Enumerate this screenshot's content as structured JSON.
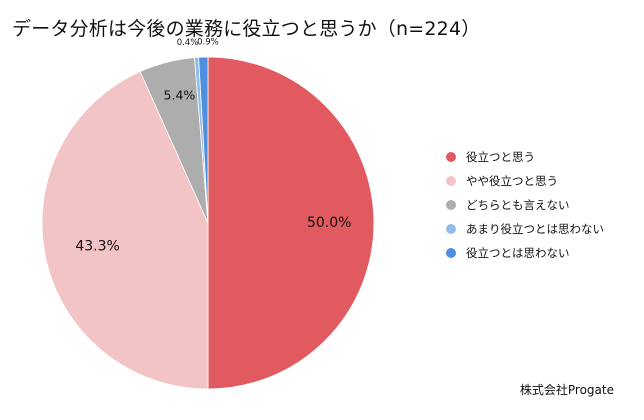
{
  "chart_data": {
    "type": "pie",
    "title": "データ分析は今後の業務に役立つと思うか（n=224）",
    "start_angle_deg": 0,
    "direction": "clockwise",
    "slices": [
      {
        "label": "役立つと思う",
        "value": 50.0,
        "value_label": "50.0%",
        "color": "#e05a60"
      },
      {
        "label": "やや役立つと思う",
        "value": 43.3,
        "value_label": "43.3%",
        "color": "#f3c4c5"
      },
      {
        "label": "どちらとも言えない",
        "value": 5.4,
        "value_label": "5.4%",
        "color": "#adadad"
      },
      {
        "label": "あまり役立つとは思わない",
        "value": 0.4,
        "value_label": "0.4%",
        "color": "#92bcea"
      },
      {
        "label": "役立つとは思わない",
        "value": 0.9,
        "value_label": "0.9%",
        "color": "#4e8fe0"
      }
    ],
    "legend_position": "right"
  },
  "credit": "株式会社Progate"
}
